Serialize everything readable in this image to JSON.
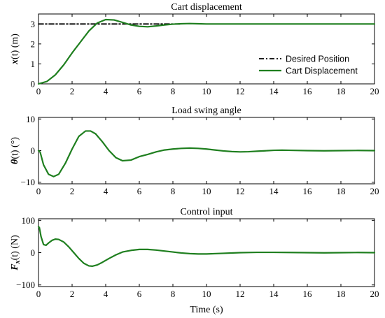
{
  "figure": {
    "xlabel": "Time (s)"
  },
  "chart_data": [
    {
      "type": "line",
      "title": "Cart displacement",
      "ylabel_base": "x",
      "ylabel_arg": "(t)",
      "ylabel_unit": "(m)",
      "xlim": [
        0,
        20
      ],
      "ylim": [
        0,
        3.5
      ],
      "xticks": [
        0,
        2,
        4,
        6,
        8,
        10,
        12,
        14,
        16,
        18,
        20
      ],
      "yticks": [
        0,
        1,
        2,
        3
      ],
      "grid": false,
      "legend_placement": "bottom-right",
      "series": [
        {
          "name": "Desired Position",
          "style": "dash-dot",
          "color": "#000000",
          "x": [
            0,
            8.5
          ],
          "y": [
            3,
            3
          ]
        },
        {
          "name": "Cart Displacement",
          "style": "solid",
          "color": "#1f7f1f",
          "x": [
            0,
            0.5,
            1,
            1.5,
            2,
            2.5,
            3,
            3.5,
            4,
            4.5,
            5,
            5.5,
            6,
            6.5,
            7,
            7.5,
            8,
            8.5,
            9,
            9.5,
            10,
            11,
            12,
            13,
            14,
            15,
            16,
            17,
            18,
            19,
            20
          ],
          "y": [
            0,
            0.12,
            0.45,
            0.95,
            1.55,
            2.1,
            2.65,
            3.05,
            3.22,
            3.2,
            3.08,
            2.95,
            2.88,
            2.86,
            2.9,
            2.95,
            2.99,
            3.01,
            3.02,
            3.01,
            3.0,
            3.0,
            3.0,
            3.0,
            3.0,
            3.0,
            3.0,
            3.0,
            3.0,
            3.0,
            3.0
          ]
        }
      ]
    },
    {
      "type": "line",
      "title": "Load swing angle",
      "ylabel_base": "θ",
      "ylabel_arg": "(t)",
      "ylabel_unit": "(°)",
      "xlim": [
        0,
        20
      ],
      "ylim": [
        -10.5,
        10.5
      ],
      "xticks": [
        0,
        2,
        4,
        6,
        8,
        10,
        12,
        14,
        16,
        18,
        20
      ],
      "yticks": [
        -10,
        0,
        10
      ],
      "grid": false,
      "series": [
        {
          "style": "solid",
          "color": "#1f7f1f",
          "x": [
            0,
            0.1,
            0.3,
            0.6,
            0.9,
            1.2,
            1.6,
            2.0,
            2.4,
            2.8,
            3.1,
            3.4,
            3.8,
            4.2,
            4.6,
            5.0,
            5.5,
            6.0,
            6.5,
            7.0,
            7.5,
            8.0,
            8.5,
            9.0,
            9.5,
            10.0,
            10.5,
            11.0,
            11.5,
            12.0,
            12.5,
            13.0,
            13.5,
            14.0,
            14.5,
            15.0,
            16,
            17,
            18,
            19,
            20
          ],
          "y": [
            0,
            -0.5,
            -4.5,
            -7.5,
            -8.2,
            -7.5,
            -4.0,
            0.5,
            4.5,
            6.2,
            6.2,
            5.3,
            2.8,
            0.0,
            -2.2,
            -3.2,
            -3.0,
            -1.9,
            -1.2,
            -0.4,
            0.2,
            0.5,
            0.7,
            0.8,
            0.7,
            0.5,
            0.2,
            -0.1,
            -0.3,
            -0.4,
            -0.35,
            -0.2,
            -0.05,
            0.1,
            0.15,
            0.1,
            0.0,
            -0.05,
            0.0,
            0.05,
            0.0
          ]
        }
      ]
    },
    {
      "type": "line",
      "title": "Control input",
      "ylabel_base": "F",
      "ylabel_sub": "x",
      "ylabel_arg": "(t)",
      "ylabel_unit": "(N)",
      "xlim": [
        0,
        20
      ],
      "ylim": [
        -105,
        105
      ],
      "xticks": [
        0,
        2,
        4,
        6,
        8,
        10,
        12,
        14,
        16,
        18,
        20
      ],
      "yticks": [
        -100,
        0,
        100
      ],
      "grid": false,
      "series": [
        {
          "style": "solid",
          "color": "#1f7f1f",
          "x": [
            0,
            0.05,
            0.15,
            0.3,
            0.45,
            0.6,
            0.8,
            1.0,
            1.2,
            1.5,
            1.8,
            2.1,
            2.4,
            2.7,
            3.0,
            3.2,
            3.5,
            3.8,
            4.2,
            4.6,
            5.0,
            5.5,
            6.0,
            6.5,
            7.0,
            7.5,
            8.0,
            8.5,
            9.0,
            9.5,
            10.0,
            11.0,
            12.0,
            13.0,
            14.0,
            15.0,
            16,
            17,
            18,
            19,
            20
          ],
          "y": [
            80,
            78,
            50,
            25,
            23,
            30,
            38,
            42,
            41,
            33,
            18,
            0,
            -18,
            -33,
            -41,
            -42,
            -38,
            -30,
            -18,
            -7,
            2,
            7,
            10,
            10,
            8,
            5,
            2,
            -1,
            -3,
            -4,
            -4,
            -2,
            0,
            1,
            1,
            0.5,
            0,
            -0.5,
            0,
            0.5,
            0
          ]
        }
      ]
    }
  ]
}
